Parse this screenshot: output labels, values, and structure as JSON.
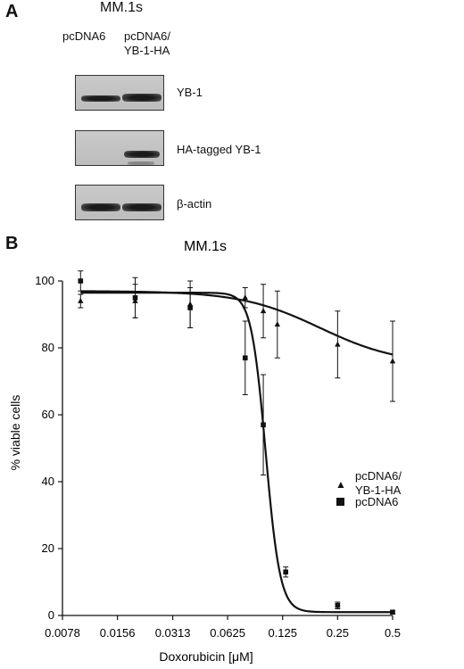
{
  "panel_a": {
    "letter": "A",
    "title": "MM.1s",
    "lanes": [
      {
        "line1": "pcDNA6",
        "line2": ""
      },
      {
        "line1": "pcDNA6/",
        "line2": "YB-1-HA"
      }
    ],
    "blots": [
      {
        "label": "YB-1"
      },
      {
        "label": "HA-tagged YB-1"
      },
      {
        "label": "β-actin"
      }
    ]
  },
  "panel_b": {
    "letter": "B",
    "legend": [
      {
        "line1": "pcDNA6/",
        "line2": "YB-1-HA",
        "marker": "triangle"
      },
      {
        "line1": "pcDNA6",
        "line2": "",
        "marker": "square"
      }
    ]
  },
  "chart_data": {
    "type": "scatter",
    "title": "MM.1s",
    "xlabel": "Doxorubicin [μM]",
    "ylabel": "% viable cells",
    "x_scale": "log2",
    "x_ticks": [
      0.0078,
      0.0156,
      0.0313,
      0.0625,
      0.125,
      0.25,
      0.5
    ],
    "x_tick_labels": [
      "0.0078",
      "0.0156",
      "0.0313",
      "0.0625",
      "0.125",
      "0.25",
      "0.5"
    ],
    "ylim": [
      0,
      100
    ],
    "y_ticks": [
      0,
      20,
      40,
      60,
      80,
      100
    ],
    "series": [
      {
        "name": "pcDNA6/ YB-1-HA",
        "marker": "triangle",
        "x": [
          0.0098,
          0.0195,
          0.039,
          0.078,
          0.098,
          0.117,
          0.25,
          0.5
        ],
        "y": [
          94,
          94,
          93,
          95,
          91,
          87,
          81,
          76
        ],
        "err": [
          2,
          5,
          7,
          3,
          8,
          10,
          10,
          12
        ],
        "fit": {
          "top": 97,
          "bottom": 75,
          "ec50": 0.2,
          "hill": 2
        }
      },
      {
        "name": "pcDNA6",
        "marker": "square",
        "x": [
          0.0098,
          0.0195,
          0.039,
          0.078,
          0.098,
          0.13,
          0.25,
          0.5
        ],
        "y": [
          100,
          95,
          92,
          77,
          57,
          13,
          3,
          1
        ],
        "err": [
          3,
          6,
          6,
          11,
          15,
          1.5,
          1,
          0.5
        ],
        "fit": {
          "top": 96.5,
          "bottom": 1,
          "ec50": 0.101,
          "hill": 11
        }
      }
    ]
  }
}
